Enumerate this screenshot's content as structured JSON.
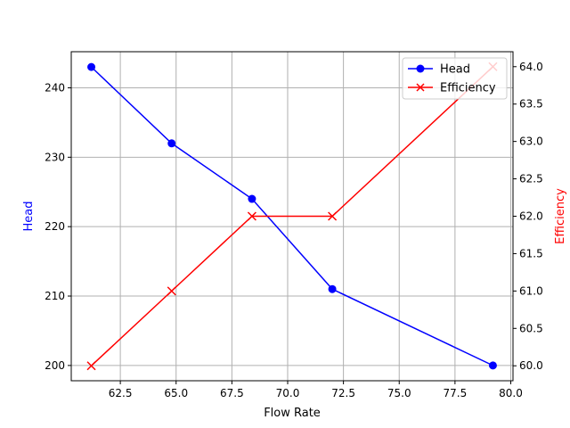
{
  "chart_data": {
    "type": "line",
    "title": "",
    "xlabel": "Flow Rate",
    "ylabel": "Head",
    "ylabel_right": "Efficiency",
    "x": [
      61.2,
      64.8,
      68.4,
      72.0,
      79.2
    ],
    "series": [
      {
        "name": "Head",
        "axis": "left",
        "color": "#0000ff",
        "marker": "circle",
        "values": [
          243,
          232,
          224,
          211,
          200
        ]
      },
      {
        "name": "Efficiency",
        "axis": "right",
        "color": "#ff0000",
        "marker": "x",
        "values": [
          60,
          61,
          62,
          62,
          64
        ]
      }
    ],
    "xlim": [
      60.3,
      80.1
    ],
    "ylim": [
      197.8,
      245.2
    ],
    "ylim_right": [
      59.8,
      64.2
    ],
    "x_ticks": [
      "62.5",
      "65.0",
      "67.5",
      "70.0",
      "72.5",
      "75.0",
      "77.5",
      "80.0"
    ],
    "y_ticks": [
      "200",
      "210",
      "220",
      "230",
      "240"
    ],
    "y_ticks_right": [
      "60.0",
      "60.5",
      "61.0",
      "61.5",
      "62.0",
      "62.5",
      "63.0",
      "63.5",
      "64.0"
    ],
    "grid": true,
    "legend_position": "upper right"
  },
  "legend": {
    "items": [
      "Head",
      "Efficiency"
    ]
  }
}
